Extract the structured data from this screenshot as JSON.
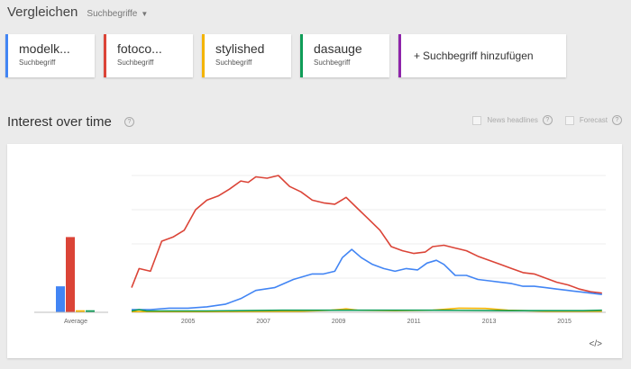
{
  "header": {
    "title": "Vergleichen",
    "mode_label": "Suchbegriffe"
  },
  "terms": [
    {
      "name": "modelk...",
      "type": "Suchbegriff",
      "color": "#4285f4"
    },
    {
      "name": "fotoco...",
      "type": "Suchbegriff",
      "color": "#db4437"
    },
    {
      "name": "stylished",
      "type": "Suchbegriff",
      "color": "#f4b400"
    },
    {
      "name": "dasauge",
      "type": "Suchbegriff",
      "color": "#0f9d58"
    }
  ],
  "add_term": {
    "label": "Suchbegriff hinzufügen",
    "plus": "+",
    "color": "#8e24aa"
  },
  "section": {
    "title": "Interest over time",
    "help": "?"
  },
  "options": {
    "news_label": "News headlines",
    "forecast_label": "Forecast"
  },
  "embed_icon": "embed-code-icon",
  "chart_data": {
    "type": "line",
    "ylim": [
      0,
      100
    ],
    "xlim": [
      2004.0,
      2016.6
    ],
    "x_ticks": [
      "2005",
      "2007",
      "2009",
      "2011",
      "2013",
      "2015"
    ],
    "gridlines": true,
    "average_bars": {
      "label": "Average",
      "values": [
        19,
        55,
        1.5,
        1.5
      ],
      "colors": [
        "#4285f4",
        "#db4437",
        "#f4b400",
        "#0f9d58"
      ]
    },
    "series": [
      {
        "color": "#db4437",
        "points": [
          [
            2004.0,
            18
          ],
          [
            2004.2,
            32
          ],
          [
            2004.5,
            30
          ],
          [
            2004.8,
            52
          ],
          [
            2005.1,
            55
          ],
          [
            2005.4,
            60
          ],
          [
            2005.7,
            75
          ],
          [
            2006.0,
            82
          ],
          [
            2006.3,
            85
          ],
          [
            2006.6,
            90
          ],
          [
            2006.9,
            96
          ],
          [
            2007.1,
            95
          ],
          [
            2007.3,
            99
          ],
          [
            2007.6,
            98
          ],
          [
            2007.9,
            100
          ],
          [
            2008.2,
            92
          ],
          [
            2008.5,
            88
          ],
          [
            2008.8,
            82
          ],
          [
            2009.1,
            80
          ],
          [
            2009.4,
            79
          ],
          [
            2009.7,
            84
          ],
          [
            2010.0,
            76
          ],
          [
            2010.3,
            68
          ],
          [
            2010.6,
            60
          ],
          [
            2010.9,
            48
          ],
          [
            2011.2,
            45
          ],
          [
            2011.5,
            43
          ],
          [
            2011.8,
            44
          ],
          [
            2012.0,
            48
          ],
          [
            2012.3,
            49
          ],
          [
            2012.6,
            47
          ],
          [
            2012.9,
            45
          ],
          [
            2013.2,
            41
          ],
          [
            2013.5,
            38
          ],
          [
            2013.8,
            35
          ],
          [
            2014.1,
            32
          ],
          [
            2014.4,
            29
          ],
          [
            2014.7,
            28
          ],
          [
            2015.0,
            25
          ],
          [
            2015.3,
            22
          ],
          [
            2015.6,
            20
          ],
          [
            2015.9,
            17
          ],
          [
            2016.2,
            15
          ],
          [
            2016.5,
            14
          ]
        ]
      },
      {
        "color": "#4285f4",
        "points": [
          [
            2004.0,
            2
          ],
          [
            2004.5,
            2
          ],
          [
            2005.0,
            3
          ],
          [
            2005.5,
            3
          ],
          [
            2006.0,
            4
          ],
          [
            2006.5,
            6
          ],
          [
            2006.9,
            10
          ],
          [
            2007.3,
            16
          ],
          [
            2007.8,
            18
          ],
          [
            2008.3,
            24
          ],
          [
            2008.8,
            28
          ],
          [
            2009.1,
            28
          ],
          [
            2009.4,
            30
          ],
          [
            2009.6,
            40
          ],
          [
            2009.85,
            46
          ],
          [
            2010.1,
            40
          ],
          [
            2010.4,
            35
          ],
          [
            2010.7,
            32
          ],
          [
            2011.0,
            30
          ],
          [
            2011.3,
            32
          ],
          [
            2011.6,
            31
          ],
          [
            2011.85,
            36
          ],
          [
            2012.1,
            38
          ],
          [
            2012.3,
            35
          ],
          [
            2012.6,
            27
          ],
          [
            2012.9,
            27
          ],
          [
            2013.2,
            24
          ],
          [
            2013.5,
            23
          ],
          [
            2013.8,
            22
          ],
          [
            2014.1,
            21
          ],
          [
            2014.4,
            19
          ],
          [
            2014.7,
            19
          ],
          [
            2015.0,
            18
          ],
          [
            2015.3,
            17
          ],
          [
            2015.6,
            16
          ],
          [
            2015.9,
            15
          ],
          [
            2016.2,
            14
          ],
          [
            2016.5,
            13
          ]
        ]
      },
      {
        "color": "#f4b400",
        "points": [
          [
            2004.0,
            0.5
          ],
          [
            2006.0,
            0.5
          ],
          [
            2008.5,
            0.8
          ],
          [
            2009.3,
            1.5
          ],
          [
            2009.7,
            2.5
          ],
          [
            2010.0,
            1.5
          ],
          [
            2011.0,
            1.2
          ],
          [
            2012.0,
            1.5
          ],
          [
            2012.7,
            3
          ],
          [
            2013.4,
            2.8
          ],
          [
            2014.0,
            1.5
          ],
          [
            2015.0,
            0.8
          ],
          [
            2016.5,
            0.8
          ]
        ]
      },
      {
        "color": "#0f9d58",
        "points": [
          [
            2004.0,
            1
          ],
          [
            2004.2,
            2
          ],
          [
            2004.4,
            1
          ],
          [
            2005.0,
            1
          ],
          [
            2006.0,
            1
          ],
          [
            2008.0,
            1.5
          ],
          [
            2010.0,
            1.5
          ],
          [
            2012.0,
            1.5
          ],
          [
            2014.0,
            1.2
          ],
          [
            2016.0,
            1.2
          ],
          [
            2016.5,
            1.5
          ]
        ]
      }
    ]
  }
}
